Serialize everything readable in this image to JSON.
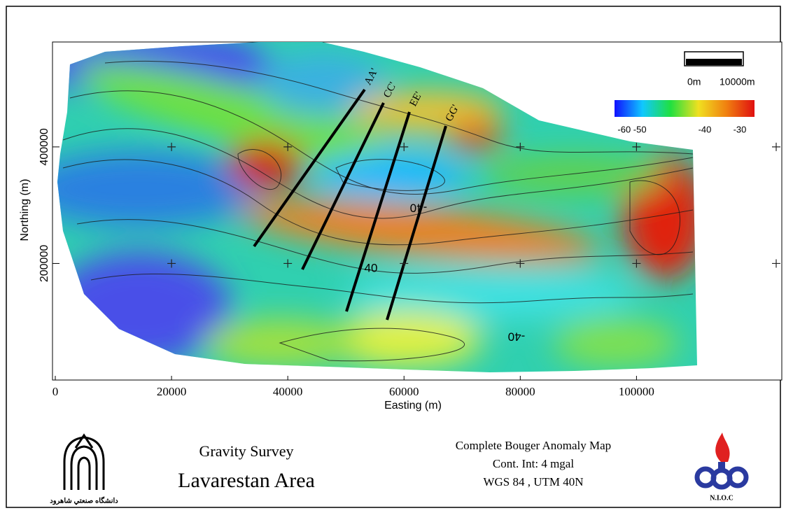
{
  "map": {
    "xlabel": "Easting (m)",
    "ylabel": "Northing (m)",
    "xlim": [
      0,
      125000
    ],
    "ylim": [
      0,
      580000
    ],
    "xticks": [
      0,
      20000,
      40000,
      60000,
      80000,
      100000
    ],
    "yticks": [
      200000,
      400000
    ],
    "profiles": [
      "AA'",
      "CC'",
      "EE'",
      "GG'"
    ],
    "contour_labels": [
      "-40",
      "40",
      "-40"
    ],
    "scale_bar": {
      "labels": [
        "0m",
        "10000m"
      ]
    },
    "colorbar": {
      "colors": [
        "#1010ff",
        "#10c8ff",
        "#20e040",
        "#f0e020",
        "#f08010",
        "#e01010"
      ],
      "labels": [
        "-60 -50",
        "-40",
        "-30"
      ]
    }
  },
  "footer": {
    "university": "دانشگاه صنعتي شاهرود",
    "survey": "Gravity Survey",
    "area": "Lavarestan Area",
    "map_title": "Complete Bouger Anomaly Map",
    "interval": "Cont. Int: 4 mgal",
    "projection": "WGS 84 , UTM 40N",
    "company": "N.I.O.C"
  }
}
